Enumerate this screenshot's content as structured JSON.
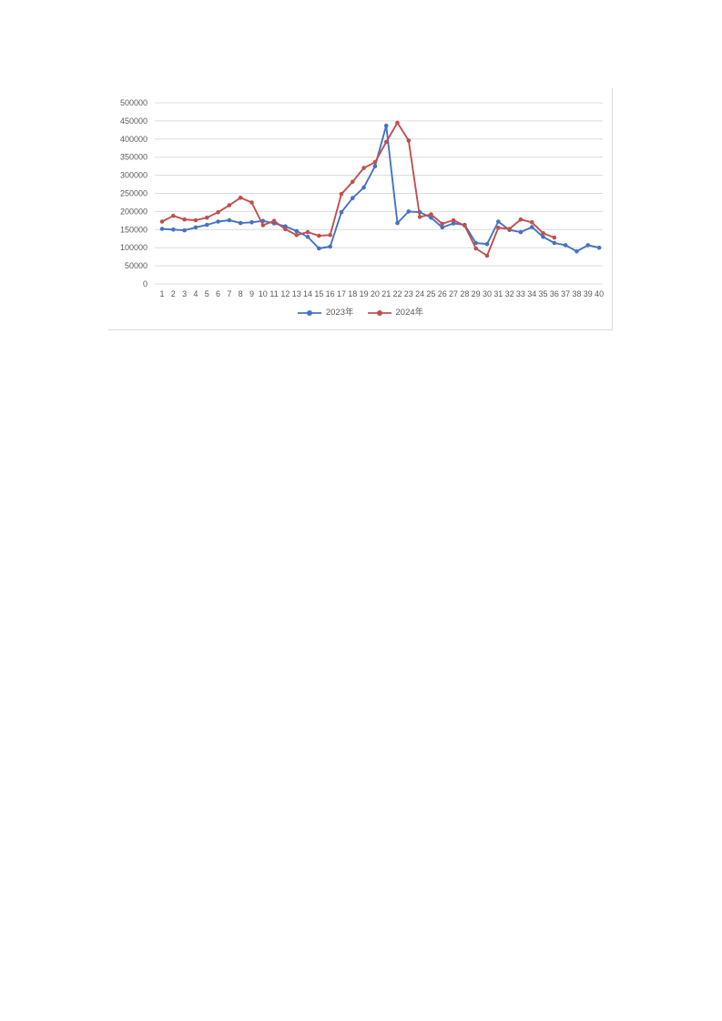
{
  "page": {
    "background_color": "#ffffff"
  },
  "chart_data": {
    "type": "line",
    "title": "",
    "xlabel": "",
    "ylabel": "",
    "x": [
      1,
      2,
      3,
      4,
      5,
      6,
      7,
      8,
      9,
      10,
      11,
      12,
      13,
      14,
      15,
      16,
      17,
      18,
      19,
      20,
      21,
      22,
      23,
      24,
      25,
      26,
      27,
      28,
      29,
      30,
      31,
      32,
      33,
      34,
      35,
      36,
      37,
      38,
      39,
      40
    ],
    "series": [
      {
        "name": "2023年",
        "color": "#4472C4",
        "values": [
          152000,
          150000,
          148000,
          156000,
          163000,
          172000,
          176000,
          168000,
          170000,
          174000,
          167000,
          159000,
          146000,
          130000,
          98000,
          103000,
          198000,
          237000,
          266000,
          325000,
          437000,
          168000,
          200000,
          198000,
          183000,
          156000,
          167000,
          163000,
          113000,
          110000,
          172000,
          149000,
          143000,
          157000,
          130000,
          113000,
          107000,
          90000,
          107000,
          100000
        ]
      },
      {
        "name": "2024年",
        "color": "#C0504D",
        "values": [
          172000,
          188000,
          178000,
          176000,
          183000,
          198000,
          217000,
          238000,
          225000,
          162000,
          174000,
          151000,
          135000,
          143000,
          133000,
          135000,
          248000,
          282000,
          320000,
          336000,
          392000,
          445000,
          396000,
          185000,
          192000,
          166000,
          176000,
          161000,
          98000,
          78000,
          155000,
          152000,
          178000,
          170000,
          140000,
          128000
        ]
      }
    ],
    "ylim": [
      0,
      500000
    ],
    "yticks": [
      0,
      50000,
      100000,
      150000,
      200000,
      250000,
      300000,
      350000,
      400000,
      450000,
      500000
    ],
    "grid": true,
    "legend_position": "bottom",
    "gridline_color": "#dcdcdc",
    "axis_text_color": "#595959"
  }
}
